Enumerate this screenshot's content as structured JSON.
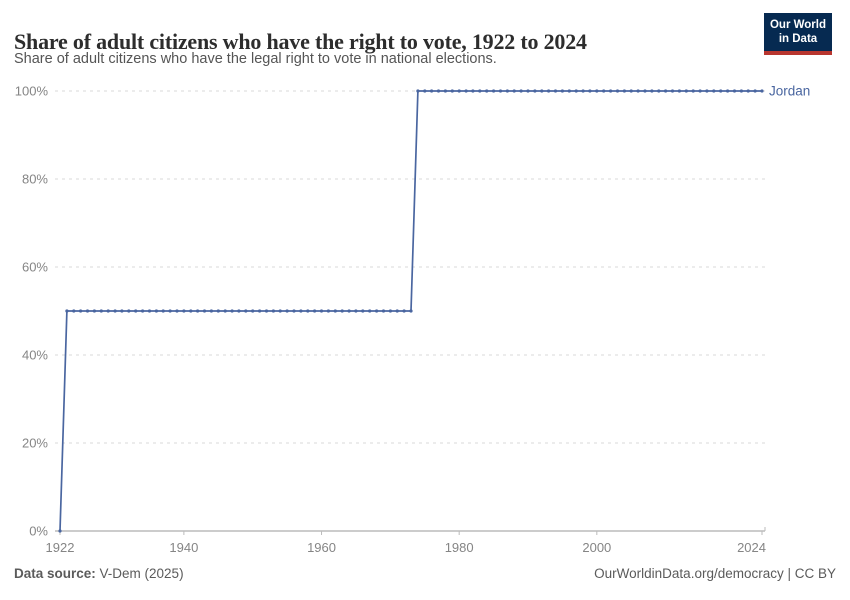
{
  "chart_data": {
    "type": "line",
    "title": "Share of adult citizens who have the right to vote, 1922 to 2024",
    "subtitle": "Share of adult citizens who have the legal right to vote in national elections.",
    "xlabel": "",
    "ylabel": "",
    "grid": true,
    "legend_position": "right-of-line-end",
    "x": {
      "min": 1922,
      "max": 2024,
      "ticks": [
        1922,
        1940,
        1960,
        1980,
        2000,
        2024
      ]
    },
    "y": {
      "min": 0,
      "max": 100,
      "ticks": [
        0,
        20,
        40,
        60,
        80,
        100
      ],
      "tick_suffix": "%"
    },
    "series": [
      {
        "name": "Jordan",
        "color": "#4A66A0",
        "steps": [
          {
            "start": 1922,
            "end": 1922,
            "value": 0
          },
          {
            "start": 1923,
            "end": 1973,
            "value": 50
          },
          {
            "start": 1974,
            "end": 2024,
            "value": 100
          }
        ]
      }
    ]
  },
  "logo": {
    "line1": "Our World",
    "line2": "in Data"
  },
  "footer": {
    "source_label": "Data source:",
    "source_value": " V-Dem (2025)",
    "rights": "OurWorldinData.org/democracy | CC BY"
  },
  "colors": {
    "line": "#4A66A0",
    "grid": "#d8d8d8",
    "axis": "#9a9a9a",
    "tick": "#bbbbbb",
    "tick_text": "#858585",
    "title_text": "#2d2d2d",
    "subtitle_text": "#555555",
    "logo_bg": "#062A51",
    "logo_bar": "#B8362F"
  }
}
